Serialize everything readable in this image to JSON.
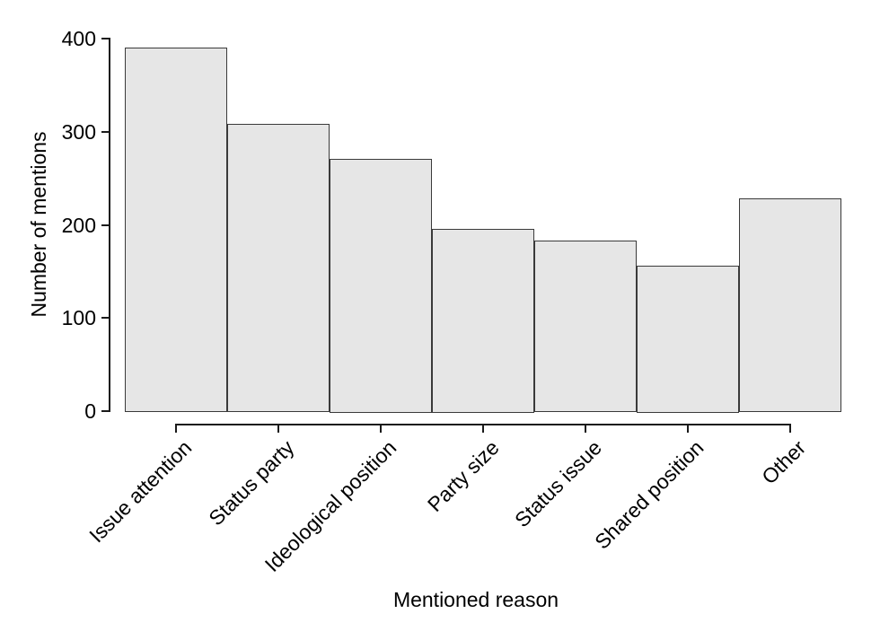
{
  "chart_data": {
    "type": "bar",
    "title": "",
    "categories": [
      "Issue attention",
      "Status party",
      "Ideological position",
      "Party size",
      "Status issue",
      "Shared position",
      "Other"
    ],
    "values": [
      389,
      307,
      270,
      195,
      182,
      155,
      227
    ],
    "xlabel": "Mentioned reason",
    "ylabel": "Number of mentions",
    "ylim": [
      0,
      400
    ],
    "yticks": [
      0,
      100,
      200,
      300,
      400
    ],
    "grid": false,
    "legend": false,
    "colors": {
      "bar_fill": "#e6e6e6",
      "bar_border": "#3a3a3a",
      "axis": "#1a1a1a",
      "text": "#000000",
      "background": "#ffffff"
    }
  }
}
